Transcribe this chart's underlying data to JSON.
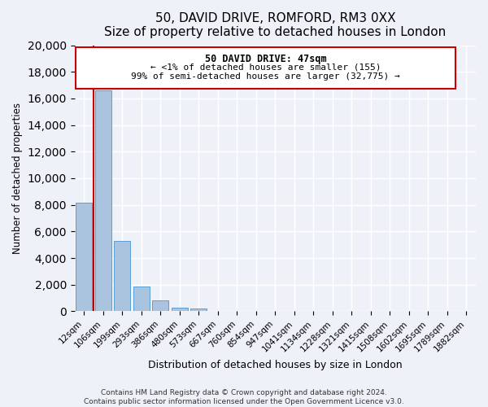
{
  "title": "50, DAVID DRIVE, ROMFORD, RM3 0XX",
  "subtitle": "Size of property relative to detached houses in London",
  "xlabel": "Distribution of detached houses by size in London",
  "ylabel": "Number of detached properties",
  "categories": [
    "12sqm",
    "106sqm",
    "199sqm",
    "293sqm",
    "386sqm",
    "480sqm",
    "573sqm",
    "667sqm",
    "760sqm",
    "854sqm",
    "947sqm",
    "1041sqm",
    "1134sqm",
    "1228sqm",
    "1321sqm",
    "1415sqm",
    "1508sqm",
    "1602sqm",
    "1695sqm",
    "1789sqm",
    "1882sqm"
  ],
  "values": [
    8150,
    16600,
    5300,
    1850,
    800,
    250,
    200,
    0,
    0,
    0,
    0,
    0,
    0,
    0,
    0,
    0,
    0,
    0,
    0,
    0,
    0
  ],
  "bar_color": "#aac4e0",
  "bar_edge_color": "#5a9fd4",
  "annotation_box_edge": "#cc0000",
  "property_line_color": "#cc0000",
  "ylim": [
    0,
    20000
  ],
  "yticks": [
    0,
    2000,
    4000,
    6000,
    8000,
    10000,
    12000,
    14000,
    16000,
    18000,
    20000
  ],
  "annotation_text_line1": "50 DAVID DRIVE: 47sqm",
  "annotation_text_line2": "← <1% of detached houses are smaller (155)",
  "annotation_text_line3": "99% of semi-detached houses are larger (32,775) →",
  "footer_line1": "Contains HM Land Registry data © Crown copyright and database right 2024.",
  "footer_line2": "Contains public sector information licensed under the Open Government Licence v3.0.",
  "background_color": "#eef2f8",
  "fig_background": "#eef2f8",
  "title_fontsize": 11,
  "subtitle_fontsize": 9.5,
  "xlabel_fontsize": 9,
  "ylabel_fontsize": 8.5,
  "tick_fontsize": 7.5,
  "footer_fontsize": 6.5
}
